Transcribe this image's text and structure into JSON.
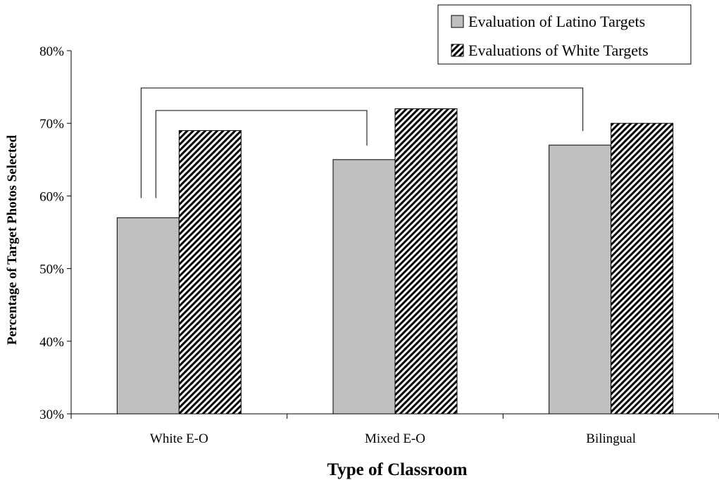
{
  "chart_data": {
    "type": "bar",
    "categories": [
      "White E-O",
      "Mixed E-O",
      "Bilingual"
    ],
    "series": [
      {
        "name": "Evaluation of Latino Targets",
        "values": [
          57,
          65,
          67
        ],
        "fill": "#c0c0c0",
        "pattern": "solid"
      },
      {
        "name": "Evaluations of White Targets",
        "values": [
          69,
          72,
          70
        ],
        "fill": "#ffffff",
        "pattern": "diagonal-hatch"
      }
    ],
    "xlabel": "Type of Classroom",
    "ylabel": "Percentage of Target Photos Selected",
    "ylim": [
      30,
      80
    ],
    "yticks": [
      "30%",
      "40%",
      "50%",
      "60%",
      "70%",
      "80%"
    ],
    "ytick_values": [
      30,
      40,
      50,
      60,
      70,
      80
    ],
    "grid": false,
    "legend_position": "top-right",
    "significance_brackets": [
      {
        "from": "White E-O",
        "to": "Bilingual"
      },
      {
        "from": "White E-O",
        "to": "Mixed E-O"
      }
    ]
  }
}
